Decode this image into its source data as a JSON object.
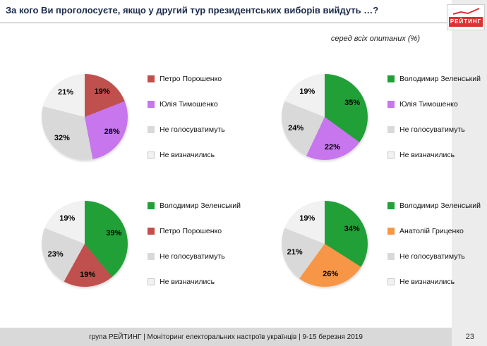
{
  "title": "За кого Ви проголосуєте, якщо у другий тур президентських виборів вийдуть …?",
  "subtitle": "серед всіх опитаних (%)",
  "logo_text": "РЕЙТИНГ",
  "footer": {
    "text": "група РЕЙТИНГ | Моніторинг електоральних настроїв українців | 9-15 березня 2019",
    "page_number": "23"
  },
  "colors": {
    "poroshenko": "#c0504d",
    "tymoshenko": "#c776ee",
    "zelensky": "#21a038",
    "hrytsenko": "#f79646",
    "wont_vote": "#d9d9d9",
    "undecided": "#f1f1f2",
    "accent_red": "#e03131",
    "footer_bg": "#d9d9d9",
    "sidebar_bg": "#ececec"
  },
  "chart_data": [
    {
      "type": "pie",
      "legend_position": "right",
      "slices": [
        {
          "label": "Петро Порошенко",
          "value": 19,
          "color": "#c0504d"
        },
        {
          "label": "Юлія Тимошенко",
          "value": 28,
          "color": "#c776ee"
        },
        {
          "label": "Не голосуватимуть",
          "value": 32,
          "color": "#d9d9d9"
        },
        {
          "label": "Не визначились",
          "value": 21,
          "color": "#f1f1f2"
        }
      ]
    },
    {
      "type": "pie",
      "legend_position": "right",
      "slices": [
        {
          "label": "Володимир Зеленський",
          "value": 35,
          "color": "#21a038"
        },
        {
          "label": "Юлія Тимошенко",
          "value": 22,
          "color": "#c776ee"
        },
        {
          "label": "Не голосуватимуть",
          "value": 24,
          "color": "#d9d9d9"
        },
        {
          "label": "Не визначились",
          "value": 19,
          "color": "#f1f1f2"
        }
      ]
    },
    {
      "type": "pie",
      "legend_position": "right",
      "slices": [
        {
          "label": "Володимир Зеленський",
          "value": 39,
          "color": "#21a038"
        },
        {
          "label": "Петро Порошенко",
          "value": 19,
          "color": "#c0504d"
        },
        {
          "label": "Не голосуватимуть",
          "value": 23,
          "color": "#d9d9d9"
        },
        {
          "label": "Не визначились",
          "value": 19,
          "color": "#f1f1f2"
        }
      ]
    },
    {
      "type": "pie",
      "legend_position": "right",
      "slices": [
        {
          "label": "Володимир Зеленський",
          "value": 34,
          "color": "#21a038"
        },
        {
          "label": "Анатолій Гриценко",
          "value": 26,
          "color": "#f79646"
        },
        {
          "label": "Не голосуватимуть",
          "value": 21,
          "color": "#d9d9d9"
        },
        {
          "label": "Не визначились",
          "value": 19,
          "color": "#f1f1f2"
        }
      ]
    }
  ]
}
